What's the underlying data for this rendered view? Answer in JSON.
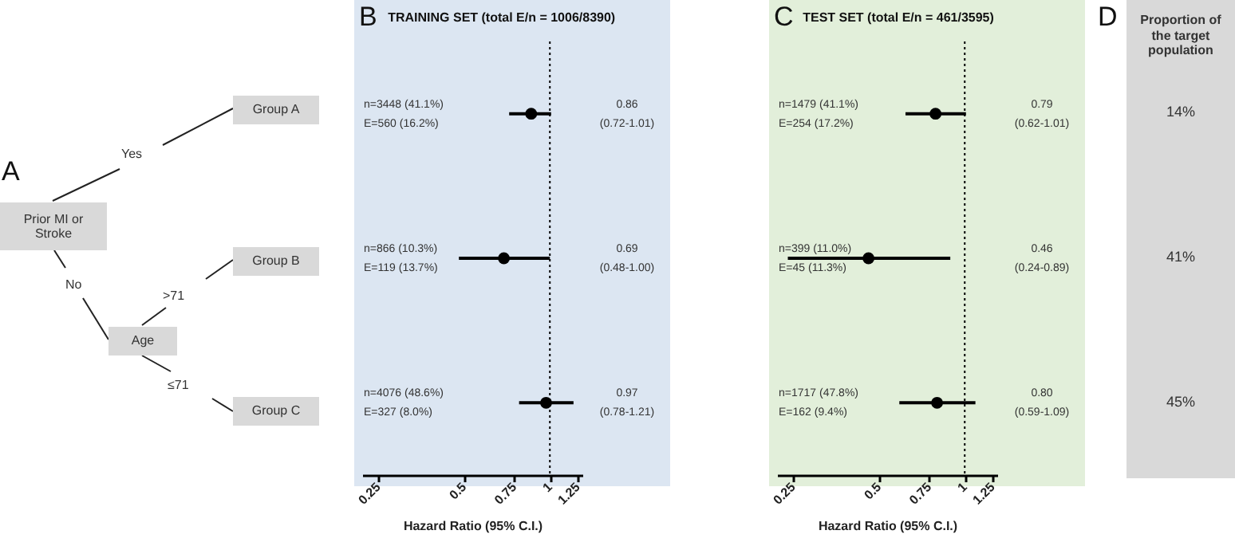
{
  "chart_data": [
    {
      "type": "other",
      "annotations": [
        "A",
        "Prior MI or Stroke",
        "Yes",
        "No",
        "Age",
        ">71",
        "≤71",
        "Group A",
        "Group B",
        "Group C"
      ]
    },
    {
      "type": "scatter",
      "orientation": "horizontal",
      "title": "TRAINING SET (total E/n = 1006/8390)",
      "xlabel": "Hazard Ratio  (95% C.I.)",
      "categories": [
        null,
        null,
        null
      ],
      "values": [
        0.86,
        0.69,
        0.97
      ],
      "errors": [
        [
          0.72,
          1.01
        ],
        [
          0.48,
          1.0
        ],
        [
          0.78,
          1.21
        ]
      ],
      "value_labels": [
        "0.86\n(0.72-1.01)",
        "0.69\n(0.48-1.00)",
        "0.97\n(0.78-1.21)"
      ],
      "color": "#000000",
      "marker": "circle",
      "log": "x",
      "xlim": [
        0.22,
        1.3
      ],
      "xticks": [
        0.25,
        0.5,
        0.75,
        1,
        1.25
      ],
      "grid": false,
      "ref_lines": [
        {
          "axis": "x",
          "value": 1,
          "line_style": "dotted"
        }
      ],
      "annotations": [
        "B",
        "n=3448 (41.1%)\nE=560 (16.2%)",
        "n=866 (10.3%)\nE=119 (13.7%)",
        "n=4076 (48.6%)\nE=327 (8.0%)"
      ]
    },
    {
      "type": "scatter",
      "orientation": "horizontal",
      "title": "TEST SET (total E/n = 461/3595)",
      "xlabel": "Hazard Ratio  (95% C.I.)",
      "categories": [
        null,
        null,
        null
      ],
      "values": [
        0.79,
        0.46,
        0.8
      ],
      "errors": [
        [
          0.62,
          1.01
        ],
        [
          0.24,
          0.89
        ],
        [
          0.59,
          1.09
        ]
      ],
      "value_labels": [
        "0.79\n(0.62-1.01)",
        "0.46\n(0.24-0.89)",
        "0.80\n(0.59-1.09)"
      ],
      "color": "#000000",
      "marker": "circle",
      "log": "x",
      "xlim": [
        0.22,
        1.3
      ],
      "xticks": [
        0.25,
        0.5,
        0.75,
        1,
        1.25
      ],
      "grid": false,
      "ref_lines": [
        {
          "axis": "x",
          "value": 1,
          "line_style": "dotted"
        }
      ],
      "annotations": [
        "C",
        "n=1479 (41.1%)\nE=254 (17.2%)",
        "n=399 (11.0%)\nE=45 (11.3%)",
        "n=1717 (47.8%)\nE=162 (9.4%)"
      ]
    },
    {
      "type": "other",
      "title": "Proportion of the target population",
      "categories": [
        null,
        null,
        null
      ],
      "values": [
        14,
        41,
        45
      ],
      "value_labels": [
        "14%",
        "41%",
        "45%"
      ],
      "annotations": [
        "D"
      ]
    }
  ]
}
